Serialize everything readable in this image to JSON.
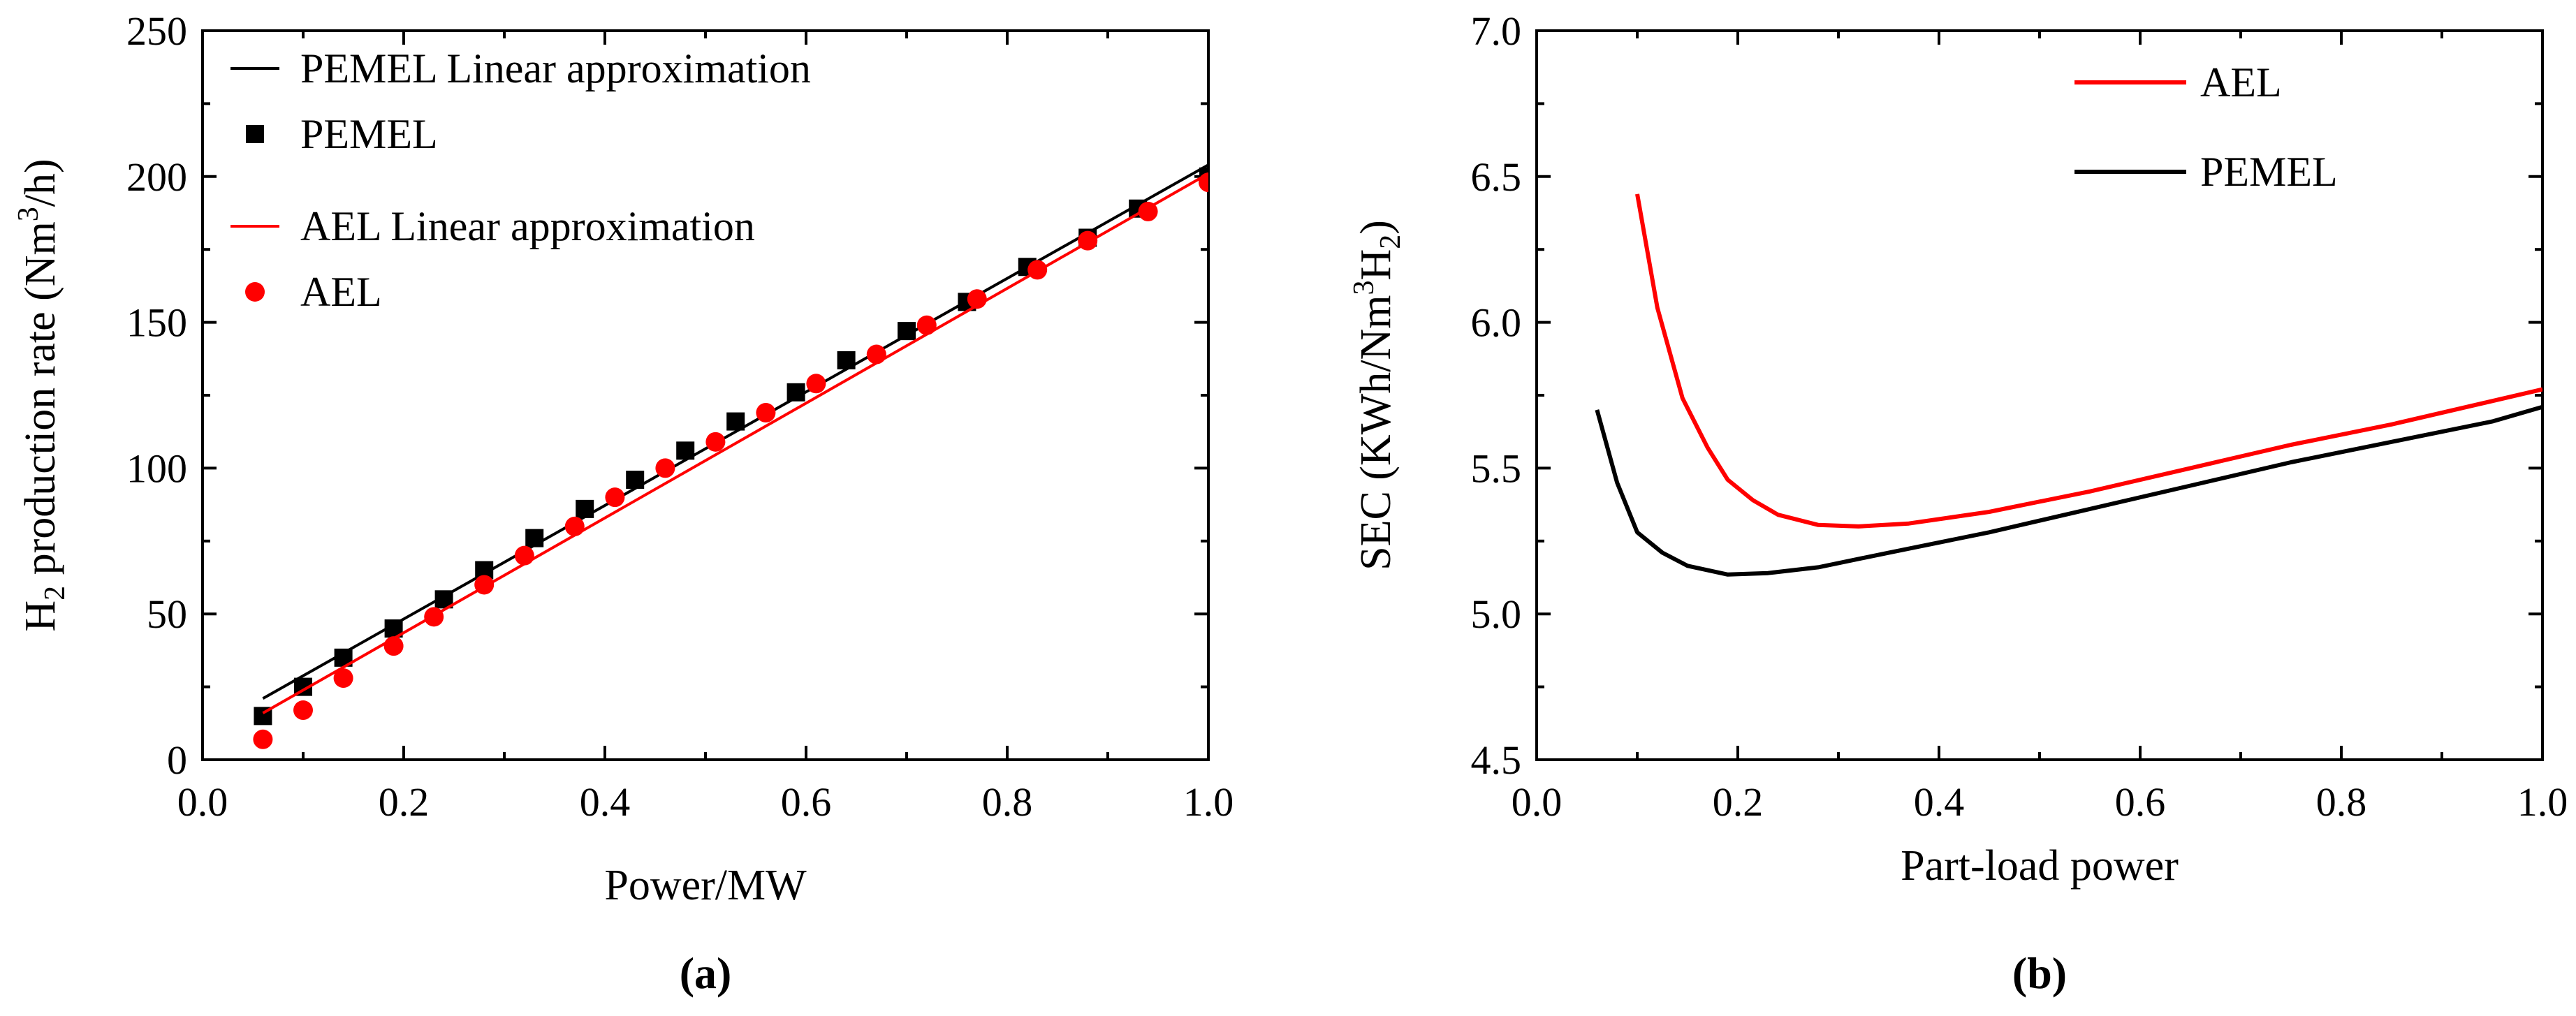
{
  "chart_data": [
    {
      "type": "scatter",
      "panel_label": "(a)",
      "xlabel": "Power/MW",
      "ylabel": {
        "pre": "H",
        "sub": "2",
        "mid": " production rate (Nm",
        "sup": "3",
        "post": "/h)"
      },
      "xlim": [
        0.0,
        1.0
      ],
      "ylim": [
        0,
        250
      ],
      "xticks": [
        0.0,
        0.2,
        0.4,
        0.6,
        0.8,
        1.0
      ],
      "xtick_labels": [
        "0.0",
        "0.2",
        "0.4",
        "0.6",
        "0.8",
        "1.0"
      ],
      "yticks": [
        0,
        50,
        100,
        150,
        200,
        250
      ],
      "ytick_labels": [
        "0",
        "50",
        "100",
        "150",
        "200",
        "250"
      ],
      "grid": false,
      "legend_position": "top-left",
      "series": [
        {
          "name": "PEMEL Linear approximation",
          "kind": "line",
          "color": "#000000",
          "x": [
            0.06,
            1.0
          ],
          "y": [
            21,
            204
          ]
        },
        {
          "name": "PEMEL",
          "kind": "square",
          "color": "#000000",
          "x": [
            0.06,
            0.1,
            0.14,
            0.19,
            0.24,
            0.28,
            0.33,
            0.38,
            0.43,
            0.48,
            0.53,
            0.59,
            0.64,
            0.7,
            0.76,
            0.82,
            0.88,
            0.93,
            1.0
          ],
          "y": [
            15,
            25,
            35,
            45,
            55,
            65,
            76,
            86,
            96,
            106,
            116,
            126,
            137,
            147,
            157,
            169,
            179,
            189,
            200
          ]
        },
        {
          "name": "AEL Linear approximation",
          "kind": "line",
          "color": "#ff0000",
          "x": [
            0.06,
            1.0
          ],
          "y": [
            16,
            201
          ]
        },
        {
          "name": "AEL",
          "kind": "circle",
          "color": "#ff0000",
          "x": [
            0.06,
            0.1,
            0.14,
            0.19,
            0.23,
            0.28,
            0.32,
            0.37,
            0.41,
            0.46,
            0.51,
            0.56,
            0.61,
            0.67,
            0.72,
            0.77,
            0.83,
            0.88,
            0.94,
            1.0
          ],
          "y": [
            7,
            17,
            28,
            39,
            49,
            60,
            70,
            80,
            90,
            100,
            109,
            119,
            129,
            139,
            149,
            158,
            168,
            178,
            188,
            198
          ]
        }
      ]
    },
    {
      "type": "line",
      "panel_label": "(b)",
      "xlabel": "Part-load power",
      "ylabel": {
        "pre": "SEC  (KWh/Nm",
        "sup": "3",
        "mid": "H",
        "sub": "2",
        "post": ")"
      },
      "xlim": [
        0.0,
        1.0
      ],
      "ylim": [
        4.5,
        7.0
      ],
      "xticks": [
        0.0,
        0.2,
        0.4,
        0.6,
        0.8,
        1.0
      ],
      "xtick_labels": [
        "0.0",
        "0.2",
        "0.4",
        "0.6",
        "0.8",
        "1.0"
      ],
      "yticks": [
        4.5,
        5.0,
        5.5,
        6.0,
        6.5,
        7.0
      ],
      "ytick_labels": [
        "4.5",
        "5.0",
        "5.5",
        "6.0",
        "6.5",
        "7.0"
      ],
      "grid": false,
      "legend_position": "top-center",
      "series": [
        {
          "name": "AEL",
          "color": "#ff0000",
          "x": [
            0.1,
            0.12,
            0.145,
            0.17,
            0.19,
            0.215,
            0.24,
            0.28,
            0.32,
            0.37,
            0.45,
            0.55,
            0.65,
            0.75,
            0.85,
            1.0
          ],
          "y": [
            6.44,
            6.05,
            5.74,
            5.57,
            5.46,
            5.39,
            5.34,
            5.305,
            5.3,
            5.31,
            5.35,
            5.42,
            5.5,
            5.58,
            5.65,
            5.77
          ]
        },
        {
          "name": "PEMEL",
          "color": "#000000",
          "x": [
            0.06,
            0.08,
            0.1,
            0.125,
            0.15,
            0.19,
            0.23,
            0.28,
            0.35,
            0.45,
            0.55,
            0.65,
            0.75,
            0.85,
            0.95,
            1.0
          ],
          "y": [
            5.7,
            5.45,
            5.28,
            5.21,
            5.165,
            5.135,
            5.14,
            5.16,
            5.21,
            5.28,
            5.36,
            5.44,
            5.52,
            5.59,
            5.66,
            5.71
          ]
        }
      ]
    }
  ]
}
